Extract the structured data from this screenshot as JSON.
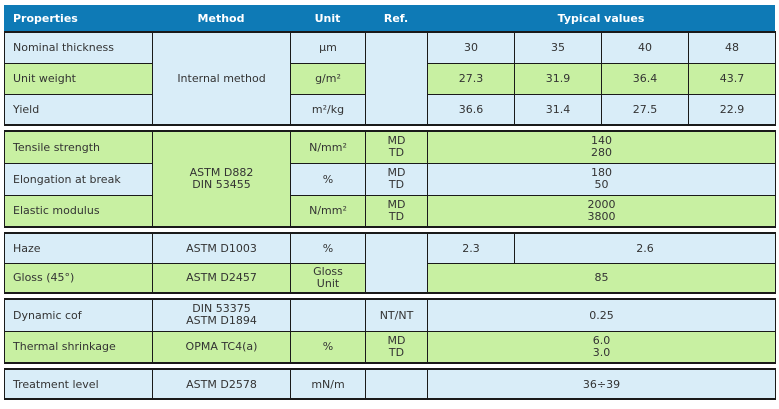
{
  "colors": {
    "header_bg": "#0e7ab6",
    "header_text": "#ffffff",
    "row_blue": "#d9edf8",
    "row_green": "#c8f0a2",
    "border": "#1a1a1a",
    "text": "#333333"
  },
  "header": {
    "properties": "Properties",
    "method": "Method",
    "unit": "Unit",
    "ref": "Ref.",
    "typical_values": "Typical values"
  },
  "sections": {
    "thickness": {
      "method": "Internal method",
      "ref": "",
      "rows": [
        {
          "property": "Nominal thickness",
          "unit": "µm",
          "values": [
            "30",
            "35",
            "40",
            "48"
          ]
        },
        {
          "property": "Unit weight",
          "unit": "g/m²",
          "values": [
            "27.3",
            "31.9",
            "36.4",
            "43.7"
          ]
        },
        {
          "property": "Yield",
          "unit": "m²/kg",
          "values": [
            "36.6",
            "31.4",
            "27.5",
            "22.9"
          ]
        }
      ]
    },
    "mechanical": {
      "method_line1": "ASTM D882",
      "method_line2": "DIN 53455",
      "rows": [
        {
          "property": "Tensile strength",
          "unit": "N/mm²",
          "ref_line1": "MD",
          "ref_line2": "TD",
          "value_line1": "140",
          "value_line2": "280"
        },
        {
          "property": "Elongation at break",
          "unit": "%",
          "ref_line1": "MD",
          "ref_line2": "TD",
          "value_line1": "180",
          "value_line2": "50"
        },
        {
          "property": "Elastic modulus",
          "unit": "N/mm²",
          "ref_line1": "MD",
          "ref_line2": "TD",
          "value_line1": "2000",
          "value_line2": "3800"
        }
      ]
    },
    "optical": {
      "ref": "",
      "haze": {
        "property": "Haze",
        "method": "ASTM D1003",
        "unit": "%",
        "value_col1": "2.3",
        "value_rest": "2.6"
      },
      "gloss": {
        "property": "Gloss (45°)",
        "method": "ASTM D2457",
        "unit_line1": "Gloss",
        "unit_line2": "Unit",
        "value": "85"
      }
    },
    "surface": {
      "cof": {
        "property": "Dynamic cof",
        "method_line1": "DIN 53375",
        "method_line2": "ASTM D1894",
        "unit": "",
        "ref": "NT/NT",
        "value": "0.25"
      },
      "shrinkage": {
        "property": "Thermal shrinkage",
        "method": "OPMA TC4(a)",
        "unit": "%",
        "ref_line1": "MD",
        "ref_line2": "TD",
        "value_line1": "6.0",
        "value_line2": "3.0"
      }
    },
    "treatment": {
      "property": "Treatment level",
      "method": "ASTM D2578",
      "unit": "mN/m",
      "ref": "",
      "value": "36÷39"
    }
  }
}
